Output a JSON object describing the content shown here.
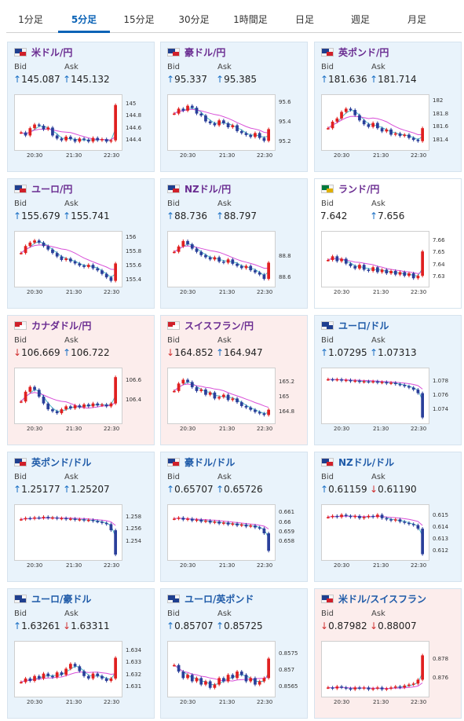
{
  "tabs": [
    {
      "label": "1分足",
      "active": false
    },
    {
      "label": "5分足",
      "active": true
    },
    {
      "label": "15分足",
      "active": false
    },
    {
      "label": "30分足",
      "active": false
    },
    {
      "label": "1時間足",
      "active": false
    },
    {
      "label": "日足",
      "active": false
    },
    {
      "label": "週足",
      "active": false
    },
    {
      "label": "月足",
      "active": false
    }
  ],
  "bid_label": "Bid",
  "ask_label": "Ask",
  "x_ticks": [
    "20:30",
    "21:30",
    "22:30"
  ],
  "cards": [
    {
      "pair": "米ドル/円",
      "color": "purple",
      "state": "up",
      "bid_dir": "↑",
      "bid": "145.087",
      "ask_dir": "↑",
      "ask": "145.132",
      "flag": [
        "#1f3f8f",
        "#d0202a"
      ],
      "y_ticks": [
        "145",
        "144.8",
        "144.6",
        "144.4"
      ],
      "y_range": [
        144.3,
        145.1
      ],
      "path": [
        144.55,
        144.5,
        144.62,
        144.68,
        144.66,
        144.6,
        144.63,
        144.5,
        144.45,
        144.42,
        144.48,
        144.44,
        144.4,
        144.45,
        144.43,
        144.4,
        144.46,
        144.42,
        144.44,
        144.4,
        144.42,
        145.0
      ]
    },
    {
      "pair": "豪ドル/円",
      "color": "purple",
      "state": "up",
      "bid_dir": "↑",
      "bid": "95.337",
      "ask_dir": "↑",
      "ask": "95.385",
      "flag": [
        "#1f3f8f",
        "#d0202a"
      ],
      "y_ticks": [
        "95.6",
        "95.4",
        "95.2"
      ],
      "y_range": [
        95.15,
        95.65
      ],
      "path": [
        95.5,
        95.55,
        95.53,
        95.58,
        95.56,
        95.5,
        95.48,
        95.42,
        95.4,
        95.38,
        95.43,
        95.4,
        95.36,
        95.38,
        95.32,
        95.3,
        95.28,
        95.26,
        95.3,
        95.25,
        95.22,
        95.34
      ]
    },
    {
      "pair": "英ポンド/円",
      "color": "purple",
      "state": "up",
      "bid_dir": "↑",
      "bid": "181.636",
      "ask_dir": "↑",
      "ask": "181.714",
      "flag": [
        "#1f3f8f",
        "#d0202a"
      ],
      "y_ticks": [
        "182",
        "181.8",
        "181.6",
        "181.4"
      ],
      "y_range": [
        181.3,
        182.05
      ],
      "path": [
        181.6,
        181.7,
        181.75,
        181.85,
        181.9,
        181.88,
        181.8,
        181.72,
        181.66,
        181.62,
        181.68,
        181.6,
        181.55,
        181.58,
        181.5,
        181.52,
        181.48,
        181.5,
        181.45,
        181.42,
        181.4,
        181.6
      ]
    },
    {
      "pair": "ユーロ/円",
      "color": "purple",
      "state": "up",
      "bid_dir": "↑",
      "bid": "155.679",
      "ask_dir": "↑",
      "ask": "155.741",
      "flag": [
        "#1f3f8f",
        "#d0202a"
      ],
      "y_ticks": [
        "156",
        "155.8",
        "155.6",
        "155.4"
      ],
      "y_range": [
        155.35,
        156.05
      ],
      "path": [
        155.8,
        155.9,
        155.95,
        155.98,
        155.95,
        155.9,
        155.85,
        155.8,
        155.75,
        155.7,
        155.72,
        155.68,
        155.65,
        155.62,
        155.6,
        155.63,
        155.58,
        155.55,
        155.5,
        155.45,
        155.4,
        155.65
      ]
    },
    {
      "pair": "NZドル/円",
      "color": "purple",
      "state": "up",
      "bid_dir": "↑",
      "bid": "88.736",
      "ask_dir": "↑",
      "ask": "88.797",
      "flag": [
        "#1f3f8f",
        "#d0202a"
      ],
      "y_ticks": [
        "88.8",
        "88.6"
      ],
      "y_range": [
        88.55,
        89.0
      ],
      "path": [
        88.85,
        88.9,
        88.95,
        88.92,
        88.88,
        88.85,
        88.82,
        88.8,
        88.78,
        88.8,
        88.76,
        88.75,
        88.78,
        88.74,
        88.72,
        88.7,
        88.72,
        88.68,
        88.66,
        88.64,
        88.6,
        88.75
      ]
    },
    {
      "pair": "ランド/円",
      "color": "purple",
      "state": "neutral",
      "bid_dir": "",
      "bid": "7.642",
      "ask_dir": "↑",
      "ask": "7.656",
      "flag": [
        "#007a3d",
        "#e0b000"
      ],
      "y_ticks": [
        "7.66",
        "7.65",
        "7.64",
        "7.63"
      ],
      "y_range": [
        7.625,
        7.665
      ],
      "path": [
        7.645,
        7.648,
        7.644,
        7.646,
        7.642,
        7.64,
        7.638,
        7.641,
        7.637,
        7.636,
        7.639,
        7.635,
        7.637,
        7.634,
        7.636,
        7.633,
        7.635,
        7.632,
        7.634,
        7.63,
        7.632,
        7.652
      ]
    },
    {
      "pair": "カナダドル/円",
      "color": "purple",
      "state": "down",
      "bid_dir": "↓",
      "bid": "106.669",
      "ask_dir": "↑",
      "ask": "106.722",
      "flag": [
        "#d0202a",
        "#ffffff"
      ],
      "y_ticks": [
        "106.6",
        "106.4"
      ],
      "y_range": [
        106.2,
        106.7
      ],
      "path": [
        106.4,
        106.5,
        106.55,
        106.52,
        106.45,
        106.38,
        106.32,
        106.3,
        106.28,
        106.32,
        106.35,
        106.33,
        106.36,
        106.34,
        106.37,
        106.35,
        106.38,
        106.36,
        106.37,
        106.35,
        106.38,
        106.65
      ]
    },
    {
      "pair": "スイスフラン/円",
      "color": "purple",
      "state": "down",
      "bid_dir": "↓",
      "bid": "164.852",
      "ask_dir": "↑",
      "ask": "164.947",
      "flag": [
        "#d0202a",
        "#ffffff"
      ],
      "y_ticks": [
        "165.2",
        "165",
        "164.8"
      ],
      "y_range": [
        164.7,
        165.35
      ],
      "path": [
        165.1,
        165.2,
        165.25,
        165.22,
        165.15,
        165.1,
        165.12,
        165.05,
        165.08,
        165.0,
        165.02,
        165.05,
        164.98,
        165.0,
        164.95,
        164.9,
        164.88,
        164.85,
        164.82,
        164.8,
        164.78,
        164.85
      ]
    },
    {
      "pair": "ユーロ/ドル",
      "color": "blue",
      "state": "up",
      "bid_dir": "↑",
      "bid": "1.07295",
      "ask_dir": "↑",
      "ask": "1.07313",
      "flag": [
        "#1f3f8f",
        "#1f3f8f"
      ],
      "y_ticks": [
        "1.078",
        "1.076",
        "1.074"
      ],
      "y_range": [
        1.0725,
        1.0795
      ],
      "path": [
        1.0785,
        1.0784,
        1.0785,
        1.0783,
        1.0784,
        1.0782,
        1.0783,
        1.0781,
        1.0782,
        1.0781,
        1.0782,
        1.078,
        1.0781,
        1.0779,
        1.078,
        1.0778,
        1.0777,
        1.0775,
        1.0773,
        1.077,
        1.0765,
        1.073
      ]
    },
    {
      "pair": "英ポンド/ドル",
      "color": "blue",
      "state": "up",
      "bid_dir": "↑",
      "bid": "1.25177",
      "ask_dir": "↑",
      "ask": "1.25207",
      "flag": [
        "#1f3f8f",
        "#d0202a"
      ],
      "y_ticks": [
        "1.258",
        "1.256",
        "1.254"
      ],
      "y_range": [
        1.2515,
        1.2595
      ],
      "path": [
        1.2578,
        1.258,
        1.2579,
        1.2581,
        1.258,
        1.2582,
        1.258,
        1.2581,
        1.2579,
        1.258,
        1.2578,
        1.2579,
        1.2577,
        1.2578,
        1.2576,
        1.2577,
        1.2575,
        1.2574,
        1.2572,
        1.257,
        1.256,
        1.252
      ]
    },
    {
      "pair": "豪ドル/ドル",
      "color": "blue",
      "state": "up",
      "bid_dir": "↑",
      "bid": "0.65707",
      "ask_dir": "↑",
      "ask": "0.65726",
      "flag": [
        "#1f3f8f",
        "#d0202a"
      ],
      "y_ticks": [
        "0.661",
        "0.66",
        "0.659",
        "0.658"
      ],
      "y_range": [
        0.6565,
        0.6615
      ],
      "path": [
        0.6605,
        0.6606,
        0.6604,
        0.6605,
        0.6603,
        0.6604,
        0.6602,
        0.6603,
        0.6601,
        0.6602,
        0.66,
        0.6601,
        0.6599,
        0.66,
        0.6598,
        0.6599,
        0.6597,
        0.6598,
        0.6596,
        0.6595,
        0.659,
        0.6572
      ]
    },
    {
      "pair": "NZドル/ドル",
      "color": "blue",
      "state": "up",
      "bid_dir": "↑",
      "bid": "0.61159",
      "ask_dir": "↓",
      "ask": "0.61190",
      "flag": [
        "#1f3f8f",
        "#d0202a"
      ],
      "y_ticks": [
        "0.615",
        "0.614",
        "0.613",
        "0.612"
      ],
      "y_range": [
        0.6115,
        0.6157
      ],
      "path": [
        0.615,
        0.6151,
        0.615,
        0.6152,
        0.6151,
        0.615,
        0.6151,
        0.6149,
        0.615,
        0.6151,
        0.615,
        0.6152,
        0.6149,
        0.6148,
        0.6147,
        0.6148,
        0.6146,
        0.6145,
        0.6144,
        0.6143,
        0.614,
        0.6118
      ]
    },
    {
      "pair": "ユーロ/豪ドル",
      "color": "blue",
      "state": "up",
      "bid_dir": "↑",
      "bid": "1.63261",
      "ask_dir": "↓",
      "ask": "1.63311",
      "flag": [
        "#1f3f8f",
        "#1f3f8f"
      ],
      "y_ticks": [
        "1.634",
        "1.633",
        "1.632",
        "1.631"
      ],
      "y_range": [
        1.6305,
        1.6345
      ],
      "path": [
        1.6315,
        1.6318,
        1.6316,
        1.632,
        1.6318,
        1.6322,
        1.632,
        1.6319,
        1.6323,
        1.6321,
        1.6326,
        1.633,
        1.6328,
        1.6324,
        1.632,
        1.6318,
        1.6322,
        1.632,
        1.6318,
        1.6316,
        1.6318,
        1.6335
      ]
    },
    {
      "pair": "ユーロ/英ポンド",
      "color": "blue",
      "state": "up",
      "bid_dir": "↑",
      "bid": "0.85707",
      "ask_dir": "↑",
      "ask": "0.85725",
      "flag": [
        "#1f3f8f",
        "#1f3f8f"
      ],
      "y_ticks": [
        "0.8575",
        "0.857",
        "0.8565"
      ],
      "y_range": [
        0.8563,
        0.8578
      ],
      "path": [
        0.8572,
        0.857,
        0.8568,
        0.8569,
        0.8567,
        0.8568,
        0.8566,
        0.8567,
        0.8565,
        0.8566,
        0.8568,
        0.8567,
        0.8569,
        0.8568,
        0.857,
        0.8569,
        0.8567,
        0.8568,
        0.8566,
        0.8567,
        0.8568,
        0.8574
      ]
    },
    {
      "pair": "米ドル/スイスフラン",
      "color": "blue",
      "state": "down",
      "bid_dir": "↓",
      "bid": "0.87982",
      "ask_dir": "↓",
      "ask": "0.88007",
      "flag": [
        "#1f3f8f",
        "#d0202a"
      ],
      "y_ticks": [
        "0.878",
        "0.876"
      ],
      "y_range": [
        0.8745,
        0.8795
      ],
      "path": [
        0.8752,
        0.8751,
        0.8753,
        0.8752,
        0.8751,
        0.875,
        0.8752,
        0.8751,
        0.8752,
        0.875,
        0.8751,
        0.8752,
        0.875,
        0.8751,
        0.8752,
        0.8753,
        0.8752,
        0.8754,
        0.8755,
        0.8756,
        0.876,
        0.8785
      ]
    }
  ]
}
